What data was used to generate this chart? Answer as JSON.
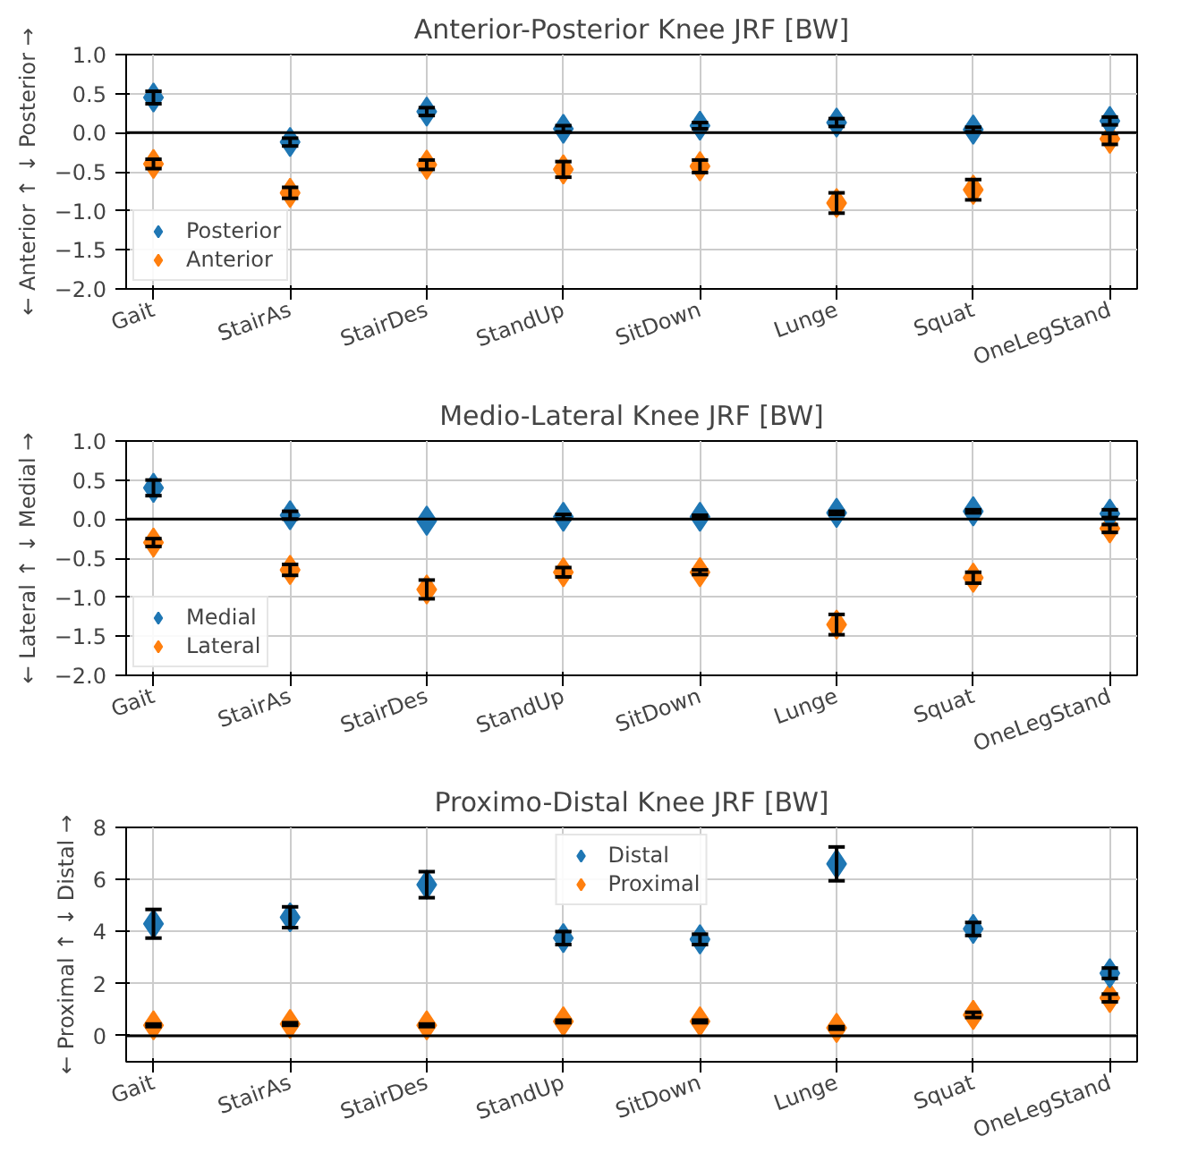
{
  "chart_data": [
    {
      "type": "scatter",
      "title": "Anterior-Posterior Knee JRF [BW]",
      "ylabel": "← Anterior ↑ ↓ Posterior →",
      "categories": [
        "Gait",
        "StairAs",
        "StairDes",
        "StandUp",
        "SitDown",
        "Lunge",
        "Squat",
        "OneLegStand"
      ],
      "ylim": [
        -2.0,
        1.0
      ],
      "yticks": [
        {
          "value": -2,
          "label": "−2.0"
        },
        {
          "value": -1.5,
          "label": "−1.5"
        },
        {
          "value": -1,
          "label": "−1.0"
        },
        {
          "value": -0.5,
          "label": "−0.5"
        },
        {
          "value": 0,
          "label": "0.0"
        },
        {
          "value": 0.5,
          "label": "0.5"
        },
        {
          "value": 1,
          "label": "1.0"
        }
      ],
      "grid": true,
      "legend": "bottom left",
      "marker": "diamond",
      "ref_lines": [
        {
          "axis": "y",
          "value": 0,
          "color": "#000000"
        }
      ],
      "series": [
        {
          "name": "Posterior",
          "color": "#1f77b4",
          "values": [
            0.45,
            -0.12,
            0.27,
            0.05,
            0.09,
            0.13,
            0.04,
            0.15
          ],
          "errors": [
            0.08,
            0.05,
            0.05,
            0.04,
            0.04,
            0.05,
            0.03,
            0.05
          ]
        },
        {
          "name": "Anterior",
          "color": "#ff7f0e",
          "values": [
            -0.4,
            -0.77,
            -0.41,
            -0.47,
            -0.43,
            -0.9,
            -0.73,
            -0.08
          ],
          "errors": [
            0.06,
            0.07,
            0.06,
            0.1,
            0.08,
            0.13,
            0.13,
            0.07
          ]
        }
      ]
    },
    {
      "type": "scatter",
      "title": "Medio-Lateral Knee JRF [BW]",
      "ylabel": "← Lateral ↑ ↓ Medial →",
      "categories": [
        "Gait",
        "StairAs",
        "StairDes",
        "StandUp",
        "SitDown",
        "Lunge",
        "Squat",
        "OneLegStand"
      ],
      "ylim": [
        -2.0,
        1.0
      ],
      "yticks": [
        {
          "value": -2,
          "label": "−2.0"
        },
        {
          "value": -1.5,
          "label": "−1.5"
        },
        {
          "value": -1,
          "label": "−1.0"
        },
        {
          "value": -0.5,
          "label": "−0.5"
        },
        {
          "value": 0,
          "label": "0.0"
        },
        {
          "value": 0.5,
          "label": "0.5"
        },
        {
          "value": 1,
          "label": "1.0"
        }
      ],
      "grid": true,
      "legend": "bottom left",
      "marker": "diamond",
      "ref_lines": [
        {
          "axis": "y",
          "value": 0,
          "color": "#000000"
        }
      ],
      "series": [
        {
          "name": "Medial",
          "color": "#1f77b4",
          "values": [
            0.4,
            0.05,
            -0.02,
            0.03,
            0.03,
            0.08,
            0.1,
            0.07
          ],
          "errors": [
            0.1,
            0.05,
            null,
            0.03,
            0.02,
            0.02,
            0.02,
            0.05
          ]
        },
        {
          "name": "Lateral",
          "color": "#ff7f0e",
          "values": [
            -0.3,
            -0.65,
            -0.9,
            -0.68,
            -0.68,
            -1.35,
            -0.75,
            -0.12
          ],
          "errors": [
            0.05,
            0.07,
            0.12,
            0.06,
            0.03,
            0.13,
            0.07,
            0.05
          ]
        }
      ]
    },
    {
      "type": "scatter",
      "title": "Proximo-Distal Knee JRF [BW]",
      "ylabel": "← Proximal ↑ ↓ Distal →",
      "categories": [
        "Gait",
        "StairAs",
        "StairDes",
        "StandUp",
        "SitDown",
        "Lunge",
        "Squat",
        "OneLegStand"
      ],
      "ylim": [
        -1,
        8
      ],
      "yticks": [
        0,
        2,
        4,
        6,
        8
      ],
      "grid": true,
      "legend": "top",
      "marker": "diamond",
      "ref_lines": [
        {
          "axis": "y",
          "value": 0,
          "color": "#000000"
        }
      ],
      "series": [
        {
          "name": "Distal",
          "color": "#1f77b4",
          "values": [
            4.3,
            4.55,
            5.8,
            3.75,
            3.7,
            6.6,
            4.1,
            2.4
          ],
          "errors": [
            0.55,
            0.4,
            0.5,
            0.25,
            0.2,
            0.65,
            0.25,
            0.2
          ]
        },
        {
          "name": "Proximal",
          "color": "#ff7f0e",
          "values": [
            0.4,
            0.45,
            0.4,
            0.55,
            0.55,
            0.3,
            0.8,
            1.45
          ],
          "errors": [
            0.05,
            0.05,
            0.05,
            0.05,
            0.05,
            0.05,
            0.1,
            0.15
          ]
        }
      ]
    }
  ]
}
